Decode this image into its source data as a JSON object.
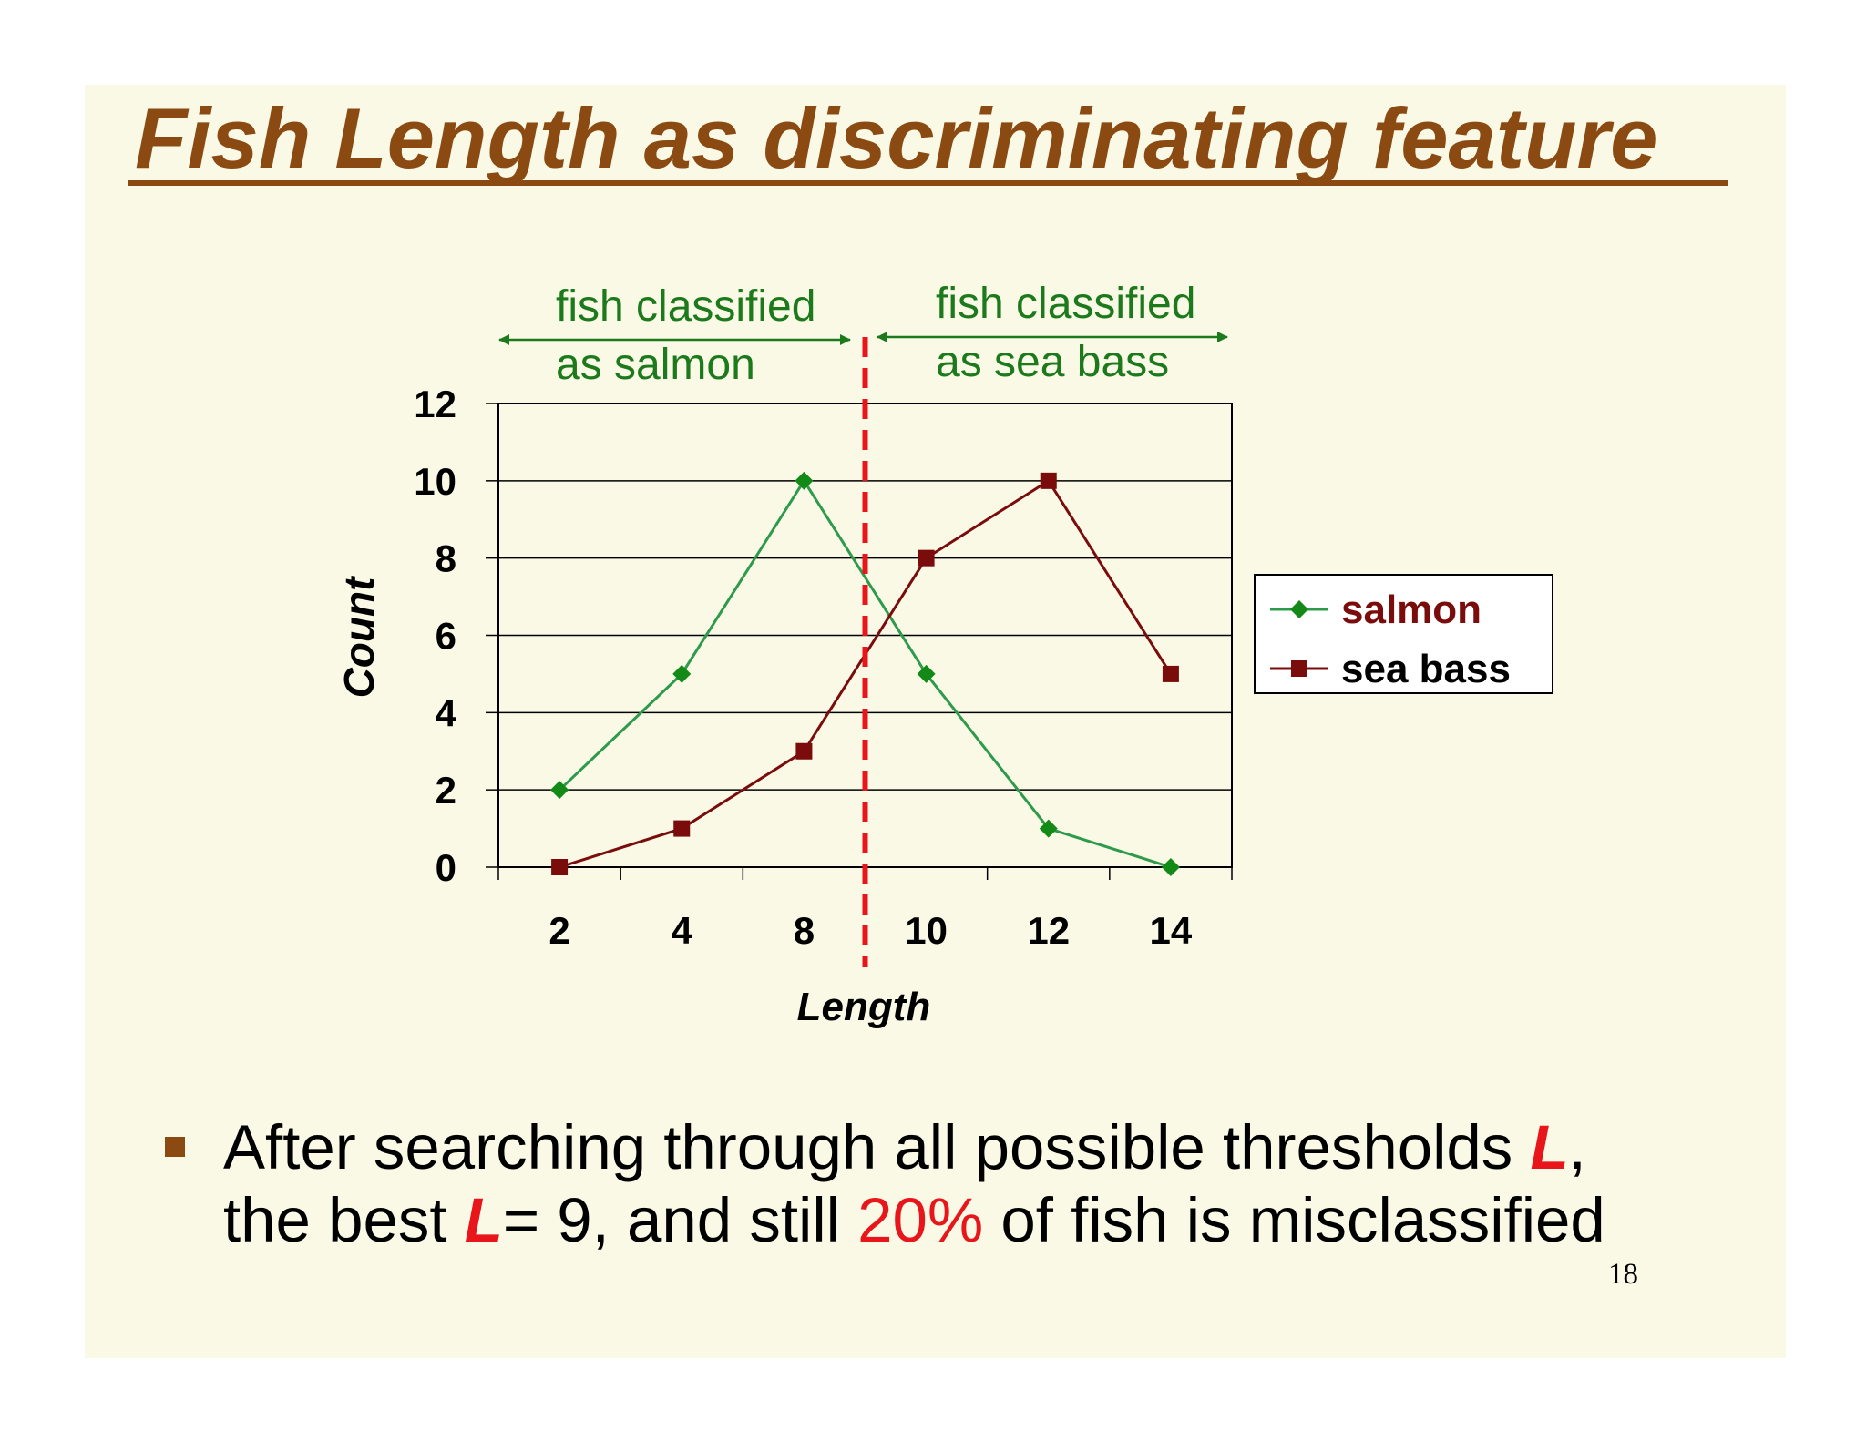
{
  "slide": {
    "title": "Fish Length as discriminating feature",
    "page_number": "18"
  },
  "colors": {
    "title": "#8a4a12",
    "background": "#f9f9e6",
    "salmon": "#2e9a4c",
    "salmon_marker": "#138a18",
    "sea_bass": "#7a0c0c",
    "threshold": "#e8151a",
    "annotation": "#1c7a1c"
  },
  "annotations": {
    "left": {
      "line1": "fish classified",
      "line2": "as salmon"
    },
    "right": {
      "line1": "fish classified",
      "line2": "as sea bass"
    }
  },
  "bullet": {
    "icon": "square-bullet-icon",
    "line1_a": "After searching through all possible thresholds ",
    "line1_var": "L",
    "line1_b": ",",
    "line2_a": "the best ",
    "line2_var": "L",
    "line2_b": "= 9, and still ",
    "line2_pct": "20%",
    "line2_c": " of fish is misclassified"
  },
  "chart_data": {
    "type": "line",
    "categories": [
      "2",
      "4",
      "8",
      "10",
      "12",
      "14"
    ],
    "series": [
      {
        "name": "salmon",
        "values": [
          2,
          5,
          10,
          5,
          1,
          0
        ],
        "marker": "diamond"
      },
      {
        "name": "sea bass",
        "values": [
          0,
          1,
          3,
          8,
          10,
          5
        ],
        "marker": "square"
      }
    ],
    "xlabel": "Length",
    "ylabel": "Count",
    "ylim": [
      0,
      12
    ],
    "yticks": [
      0,
      2,
      4,
      6,
      8,
      10,
      12
    ],
    "grid": true,
    "legend": "right",
    "threshold": {
      "between": [
        "8",
        "10"
      ],
      "style": "dashed",
      "color": "red"
    }
  }
}
